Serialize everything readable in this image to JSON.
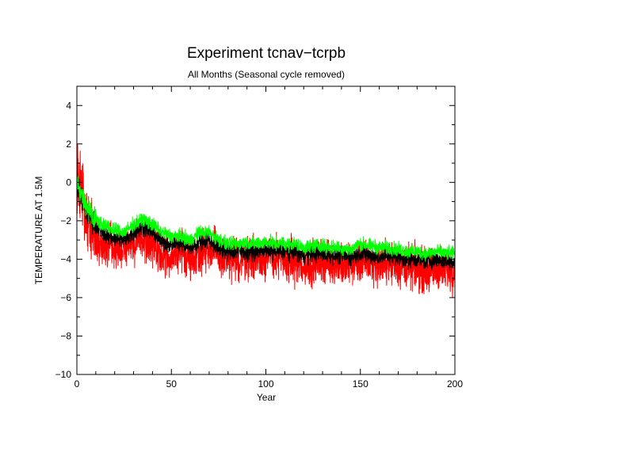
{
  "chart_data": {
    "type": "line",
    "title": "Experiment tcnav−tcrpb",
    "subtitle": "All Months (Seasonal cycle removed)",
    "xlabel": "Year",
    "ylabel": "TEMPERATURE AT 1.5M",
    "xlim": [
      0,
      200
    ],
    "ylim": [
      -10,
      5
    ],
    "x_ticks": [
      "0",
      "50",
      "100",
      "150",
      "200"
    ],
    "y_ticks": [
      "4",
      "2",
      "0",
      "−2",
      "−4",
      "−6",
      "−8",
      "−10"
    ],
    "x_tick_values": [
      0,
      50,
      100,
      150,
      200
    ],
    "y_tick_values": [
      4,
      2,
      0,
      -2,
      -4,
      -6,
      -8,
      -10
    ],
    "x_minor_step": 10,
    "y_minor_step": 1,
    "grid": false,
    "legend": "none",
    "series": [
      {
        "color": "#ff0000",
        "noise": 0.55,
        "x": [
          0,
          2,
          5,
          10,
          15,
          20,
          25,
          30,
          35,
          40,
          45,
          50,
          55,
          60,
          65,
          70,
          75,
          80,
          85,
          90,
          95,
          100,
          105,
          110,
          115,
          120,
          125,
          130,
          135,
          140,
          145,
          150,
          155,
          160,
          165,
          170,
          175,
          180,
          185,
          190,
          195,
          200
        ],
        "values": [
          0.2,
          -0.3,
          -1.8,
          -2.9,
          -3.3,
          -3.5,
          -3.6,
          -3.0,
          -2.8,
          -3.3,
          -3.9,
          -3.8,
          -3.6,
          -4.0,
          -3.6,
          -3.4,
          -3.8,
          -4.0,
          -4.1,
          -3.9,
          -4.0,
          -3.8,
          -3.9,
          -4.0,
          -4.1,
          -4.4,
          -4.2,
          -4.1,
          -4.2,
          -4.3,
          -4.3,
          -4.1,
          -4.2,
          -4.3,
          -4.1,
          -4.3,
          -4.4,
          -4.5,
          -4.6,
          -4.5,
          -4.5,
          -4.6
        ]
      },
      {
        "color": "#000000",
        "noise": 0.22,
        "x": [
          0,
          2,
          5,
          10,
          15,
          20,
          25,
          30,
          35,
          40,
          45,
          50,
          55,
          60,
          65,
          70,
          75,
          80,
          85,
          90,
          95,
          100,
          105,
          110,
          115,
          120,
          125,
          130,
          135,
          140,
          145,
          150,
          155,
          160,
          165,
          170,
          175,
          180,
          185,
          190,
          195,
          200
        ],
        "values": [
          0.0,
          -0.6,
          -1.5,
          -2.3,
          -2.7,
          -2.9,
          -3.0,
          -2.6,
          -2.3,
          -2.6,
          -3.1,
          -3.2,
          -3.2,
          -3.4,
          -3.1,
          -3.0,
          -3.4,
          -3.6,
          -3.6,
          -3.6,
          -3.6,
          -3.5,
          -3.6,
          -3.6,
          -3.6,
          -3.8,
          -3.7,
          -3.7,
          -3.8,
          -3.8,
          -3.9,
          -3.7,
          -3.8,
          -3.9,
          -3.8,
          -3.9,
          -4.0,
          -4.0,
          -4.1,
          -4.0,
          -4.1,
          -4.1
        ]
      },
      {
        "color": "#00ff00",
        "noise": 0.18,
        "x": [
          0,
          2,
          5,
          10,
          15,
          20,
          25,
          30,
          35,
          40,
          45,
          50,
          55,
          60,
          65,
          70,
          75,
          80,
          85,
          90,
          95,
          100,
          105,
          110,
          115,
          120,
          125,
          130,
          135,
          140,
          145,
          150,
          155,
          160,
          165,
          170,
          175,
          180,
          185,
          190,
          195,
          200
        ],
        "values": [
          0.1,
          -0.4,
          -1.2,
          -1.9,
          -2.3,
          -2.5,
          -2.6,
          -2.2,
          -1.9,
          -2.2,
          -2.6,
          -2.8,
          -2.8,
          -3.0,
          -2.6,
          -2.6,
          -3.0,
          -3.2,
          -3.2,
          -3.1,
          -3.2,
          -3.1,
          -3.2,
          -3.2,
          -3.2,
          -3.4,
          -3.3,
          -3.3,
          -3.4,
          -3.4,
          -3.5,
          -3.2,
          -3.3,
          -3.4,
          -3.4,
          -3.5,
          -3.6,
          -3.6,
          -3.7,
          -3.6,
          -3.7,
          -3.7
        ]
      }
    ]
  }
}
